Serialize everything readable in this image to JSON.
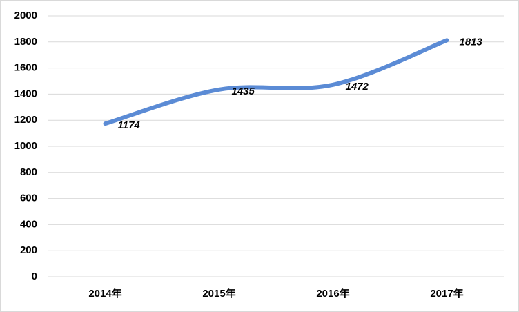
{
  "chart_data": {
    "type": "line",
    "categories": [
      "2014年",
      "2015年",
      "2016年",
      "2017年"
    ],
    "values": [
      1174,
      1435,
      1472,
      1813
    ],
    "color": "#5b8bd5",
    "ylim": [
      0,
      2000
    ],
    "yticks": [
      0,
      200,
      400,
      600,
      800,
      1000,
      1200,
      1400,
      1600,
      1800,
      2000
    ],
    "grid": true
  }
}
